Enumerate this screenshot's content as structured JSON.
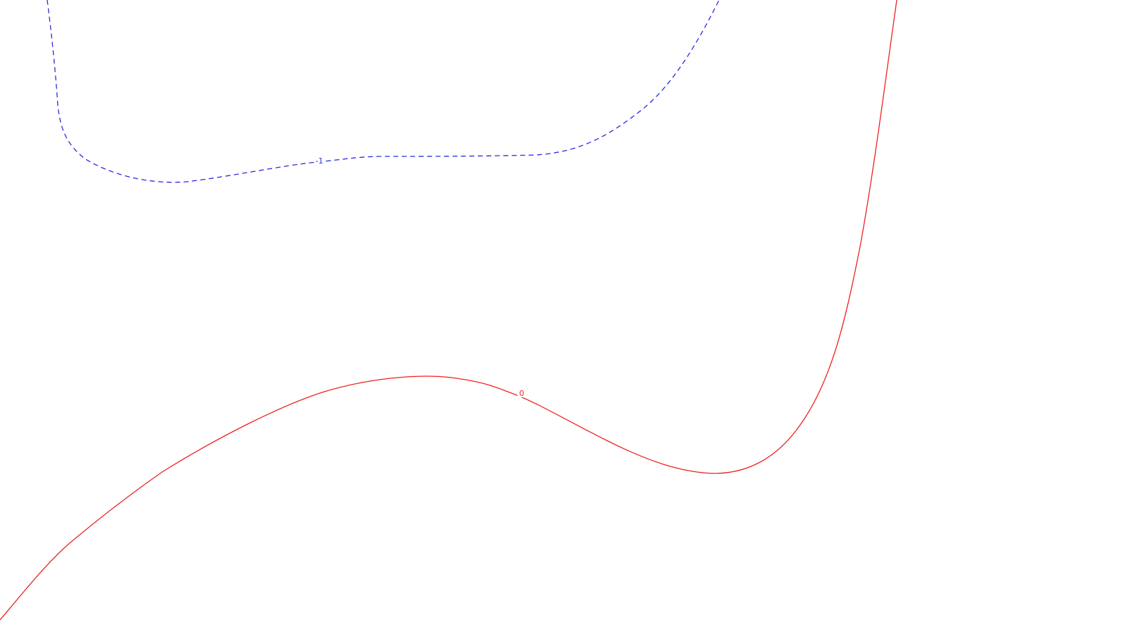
{
  "contours": [
    {
      "level": "-1",
      "color": "#2a2ae0",
      "line_style": "dashed"
    },
    {
      "level": "0",
      "color": "#ee2222",
      "line_style": "solid"
    }
  ]
}
